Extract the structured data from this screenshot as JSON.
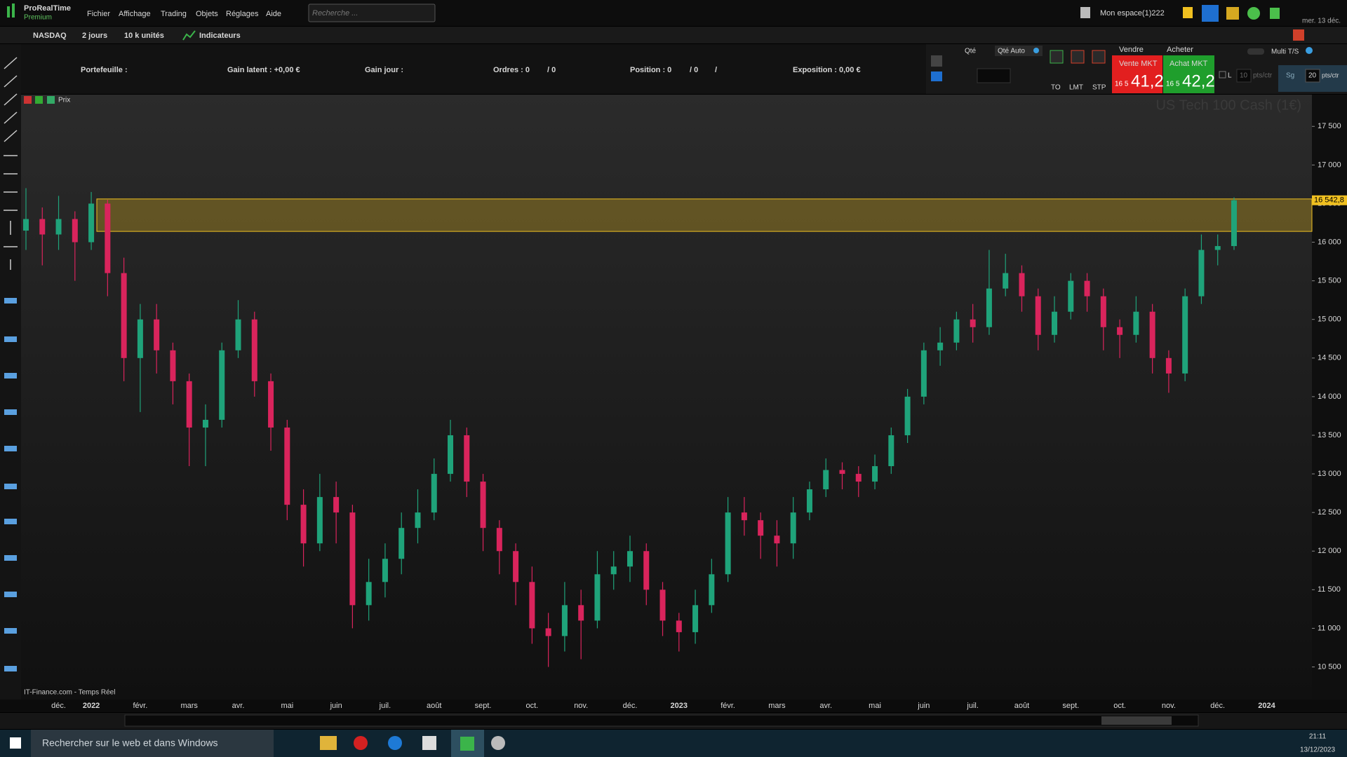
{
  "ui": {
    "app": {
      "name": "ProRealTime",
      "edition": "Premium"
    },
    "menu": [
      "Fichier",
      "Affichage",
      "Trading",
      "Objets",
      "Réglages",
      "Aide"
    ],
    "search_placeholder": "Recherche ...",
    "workspace": "Mon espace(1)222",
    "date_short": "mer. 13 déc.",
    "toolbar": [
      "NASDAQ",
      "2 jours",
      "10 k unités",
      "Indicateurs"
    ],
    "account": [
      "Portefeuille :",
      "Gain latent :  +0,00 €",
      "Gain jour :",
      "Ordres : 0",
      "/ 0",
      "Position : 0",
      "/ 0",
      "/",
      "Exposition : 0,00 €"
    ],
    "order": {
      "qty": "Qté",
      "qty_auto": "Qté Auto",
      "types": [
        "TO",
        "LMT",
        "STP"
      ],
      "sell": "Vendre",
      "buy": "Acheter",
      "sell_mkt": "Vente MKT",
      "buy_mkt": "Achat MKT",
      "sell_price": {
        "prefix": "16 5",
        "main": "41,2"
      },
      "buy_price": {
        "prefix": "16 5",
        "main": "42,2"
      },
      "l": "L",
      "l_value": "10",
      "unit": "pts/ctr",
      "sg": "Sg",
      "sg_value": "20",
      "multi": "Multi T/S"
    },
    "chart_header": "Prix",
    "source": "IT-Finance.com - Temps Réel",
    "taskbar": {
      "search": "Rechercher sur le web et dans Windows",
      "time": "21:11",
      "date": "13/12/2023"
    }
  },
  "chart_data": {
    "type": "candlestick",
    "title": "US Tech 100 Cash (1€)",
    "categories": [
      null,
      null,
      "déc.",
      null,
      "2022",
      null,
      null,
      "févr.",
      null,
      null,
      "mars",
      null,
      null,
      "avr.",
      null,
      null,
      "mai",
      null,
      null,
      "juin",
      null,
      null,
      "juil.",
      null,
      null,
      "août",
      null,
      null,
      "sept.",
      null,
      null,
      "oct.",
      null,
      null,
      "nov.",
      null,
      null,
      "déc.",
      null,
      null,
      "2023",
      null,
      null,
      "févr.",
      null,
      null,
      "mars",
      null,
      null,
      "avr.",
      null,
      null,
      "mai",
      null,
      null,
      "juin",
      null,
      null,
      "juil.",
      null,
      null,
      "août",
      null,
      null,
      "sept.",
      null,
      null,
      "oct.",
      null,
      null,
      "nov.",
      null,
      null,
      "déc.",
      null,
      null,
      "2024"
    ],
    "open": [
      16150,
      16300,
      16100,
      16300,
      16000,
      16500,
      15600,
      14500,
      15000,
      14600,
      14200,
      13600,
      13700,
      14600,
      15000,
      14200,
      13600,
      12600,
      12100,
      12700,
      12500,
      11300,
      11600,
      11900,
      12300,
      12500,
      13000,
      13500,
      12900,
      12300,
      12000,
      11600,
      11000,
      10900,
      11300,
      11100,
      11700,
      11800,
      12000,
      11500,
      11100,
      10950,
      11300,
      11700,
      12500,
      12400,
      12200,
      12100,
      12500,
      12800,
      13050,
      13000,
      12900,
      13100,
      13500,
      14000,
      14600,
      14700,
      15000,
      14900,
      15400,
      15600,
      15300,
      14800,
      15100,
      15500,
      15300,
      14900,
      14800,
      15100,
      14500,
      14300,
      15300,
      15900,
      15950,
      null,
      null
    ],
    "high": [
      16700,
      16450,
      16600,
      16400,
      16650,
      16550,
      15800,
      15200,
      15200,
      14700,
      14300,
      13900,
      14700,
      15250,
      15100,
      14300,
      13700,
      12800,
      13000,
      12900,
      12600,
      11900,
      12100,
      12500,
      12800,
      13200,
      13700,
      13600,
      13000,
      12400,
      12100,
      11800,
      11200,
      11600,
      11500,
      12000,
      12000,
      12200,
      12100,
      11600,
      11200,
      11500,
      11900,
      12700,
      12700,
      12500,
      12400,
      12700,
      12900,
      13200,
      13150,
      13100,
      13250,
      13600,
      14100,
      14700,
      14900,
      15100,
      15200,
      15900,
      15850,
      15700,
      15400,
      15300,
      15600,
      15600,
      15400,
      15000,
      15300,
      15200,
      14600,
      15400,
      16100,
      16100,
      16580,
      null,
      null
    ],
    "low": [
      15900,
      15700,
      15900,
      15500,
      15900,
      15300,
      14200,
      13800,
      14300,
      13900,
      13100,
      13100,
      13600,
      14500,
      14000,
      13300,
      12400,
      11800,
      12000,
      12100,
      11000,
      11100,
      11400,
      11700,
      12100,
      12400,
      12900,
      12700,
      12000,
      11700,
      11300,
      10800,
      10500,
      10700,
      10600,
      11000,
      11500,
      11600,
      11300,
      10900,
      10700,
      10800,
      11200,
      11600,
      12200,
      11900,
      11800,
      11900,
      12400,
      12700,
      12800,
      12700,
      12800,
      13000,
      13400,
      13900,
      14400,
      14600,
      14700,
      14800,
      15300,
      15100,
      14600,
      14700,
      15000,
      15100,
      14600,
      14500,
      14700,
      14300,
      14050,
      14200,
      15200,
      15700,
      15900,
      null,
      null
    ],
    "close": [
      16300,
      16100,
      16300,
      16000,
      16500,
      15600,
      14500,
      15000,
      14600,
      14200,
      13600,
      13700,
      14600,
      15000,
      14200,
      13600,
      12600,
      12100,
      12700,
      12500,
      11300,
      11600,
      11900,
      12300,
      12500,
      13000,
      13500,
      12900,
      12300,
      12000,
      11600,
      11000,
      10900,
      11300,
      11100,
      11700,
      11800,
      12000,
      11500,
      11100,
      10950,
      11300,
      11700,
      12500,
      12400,
      12200,
      12100,
      12500,
      12800,
      13050,
      13000,
      12900,
      13100,
      13500,
      14000,
      14600,
      14700,
      15000,
      14900,
      15400,
      15600,
      15300,
      14800,
      15100,
      15500,
      15300,
      14900,
      14800,
      15100,
      14500,
      14300,
      15300,
      15900,
      15950,
      16542.8,
      null,
      null
    ],
    "up_color": "#1fa37a",
    "down_color": "#d9245c",
    "zone": [
      16140,
      16560
    ],
    "zone_color": "#f0c020",
    "last_price": {
      "value": 16542.8,
      "label": "16 542,8"
    },
    "ylim": [
      10078,
      17911
    ],
    "yticks": [
      {
        "value": 17500,
        "label": "17 500"
      },
      {
        "value": 17000,
        "label": "17 000"
      },
      {
        "value": 16500,
        "label": "16 500"
      },
      {
        "value": 16000,
        "label": "16 000"
      },
      {
        "value": 15500,
        "label": "15 500"
      },
      {
        "value": 15000,
        "label": "15 000"
      },
      {
        "value": 14500,
        "label": "14 500"
      },
      {
        "value": 14000,
        "label": "14 000"
      },
      {
        "value": 13500,
        "label": "13 500"
      },
      {
        "value": 13000,
        "label": "13 000"
      },
      {
        "value": 12500,
        "label": "12 500"
      },
      {
        "value": 12000,
        "label": "12 000"
      },
      {
        "value": 11500,
        "label": "11 500"
      },
      {
        "value": 11000,
        "label": "11 000"
      },
      {
        "value": 10500,
        "label": "10 500"
      }
    ]
  }
}
